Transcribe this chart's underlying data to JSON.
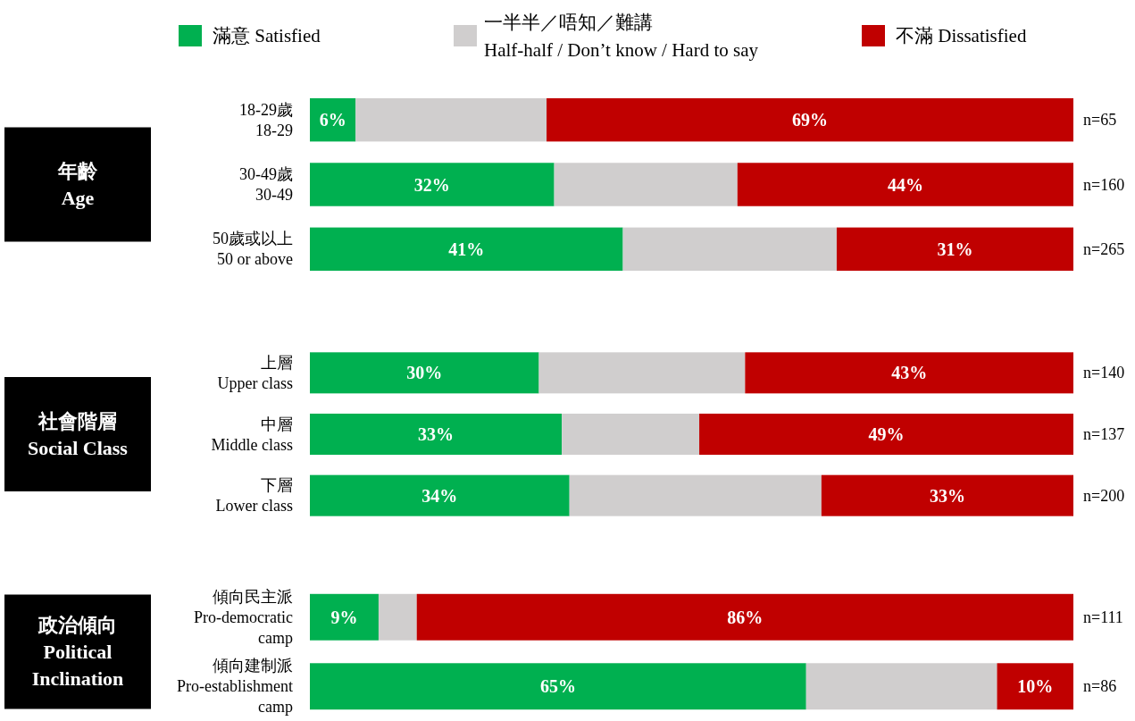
{
  "chart_data": [
    {
      "type": "bar",
      "orientation": "horizontal",
      "stacked": true,
      "title": "年齡\nAge",
      "legend": "top",
      "xlim": [
        0,
        100
      ],
      "categories": [
        "18-29歲\n18-29",
        "30-49歲\n30-49",
        "50歲或以上\n50 or above"
      ],
      "series": [
        {
          "name": "滿意 Satisfied",
          "color": "#00b050",
          "values": [
            6,
            32,
            41
          ],
          "value_labels": [
            "6%",
            "32%",
            "41%"
          ]
        },
        {
          "name": "一半半／唔知／難講\nHalf-half / Don’t know / Hard to say",
          "color": "#d0cece",
          "values": [
            25,
            24,
            28
          ]
        },
        {
          "name": "不滿 Dissatisfied",
          "color": "#c00000",
          "values": [
            69,
            44,
            31
          ],
          "value_labels": [
            "69%",
            "44%",
            "31%"
          ]
        }
      ],
      "annotations": [
        "n=65",
        "n=160",
        "n=265"
      ]
    },
    {
      "type": "bar",
      "orientation": "horizontal",
      "stacked": true,
      "title": "社會階層\nSocial Class",
      "xlim": [
        0,
        100
      ],
      "categories": [
        "上層\nUpper class",
        "中層\nMiddle class",
        "下層\nLower class"
      ],
      "series": [
        {
          "color": "#00b050",
          "values": [
            30,
            33,
            34
          ],
          "value_labels": [
            "30%",
            "33%",
            "34%"
          ]
        },
        {
          "color": "#d0cece",
          "values": [
            27,
            18,
            33
          ]
        },
        {
          "color": "#c00000",
          "values": [
            43,
            49,
            33
          ],
          "value_labels": [
            "43%",
            "49%",
            "33%"
          ]
        }
      ],
      "annotations": [
        "n=140",
        "n=137",
        "n=200"
      ]
    },
    {
      "type": "bar",
      "orientation": "horizontal",
      "stacked": true,
      "title": "政治傾向\nPolitical\nInclination",
      "xlim": [
        0,
        100
      ],
      "categories": [
        "傾向民主派\nPro-democratic\ncamp",
        "傾向建制派\nPro-establishment\ncamp"
      ],
      "series": [
        {
          "color": "#00b050",
          "values": [
            9,
            65
          ],
          "value_labels": [
            "9%",
            "65%"
          ]
        },
        {
          "color": "#d0cece",
          "values": [
            5,
            25
          ]
        },
        {
          "color": "#c00000",
          "values": [
            86,
            10
          ],
          "value_labels": [
            "86%",
            "10%"
          ]
        }
      ],
      "annotations": [
        "n=111",
        "n=86"
      ]
    }
  ]
}
